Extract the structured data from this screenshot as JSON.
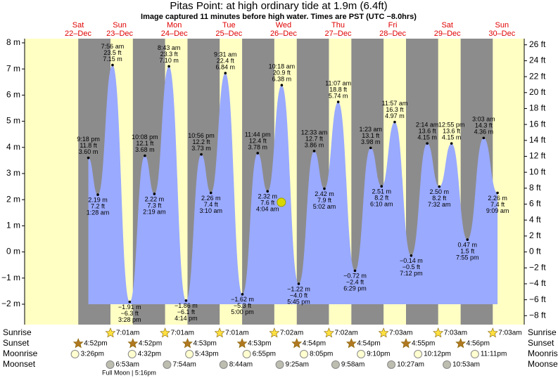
{
  "chart_data": {
    "type": "tide",
    "title": "Pitas Point: at high  ordinary tide at 1.9m (6.4ft)",
    "subtitle": "Image captured 11 minutes before high water. Times are PST (UTC −8.0hrs)",
    "current": {
      "m": 1.9,
      "minutes_before_high": 11
    },
    "ylim": [
      -2.78,
      8.16
    ],
    "yticks": [
      {
        "value": -2,
        "label": "−2 m"
      },
      {
        "value": -1,
        "label": "−1 m"
      },
      {
        "value": 0,
        "label": "0 m"
      },
      {
        "value": 1,
        "label": "1 m"
      },
      {
        "value": 2,
        "label": "2 m"
      },
      {
        "value": 3,
        "label": "3 m"
      },
      {
        "value": 4,
        "label": "4 m"
      },
      {
        "value": 5,
        "label": "5 m"
      },
      {
        "value": 6,
        "label": "6 m"
      },
      {
        "value": 7,
        "label": "7 m"
      },
      {
        "value": 8,
        "label": "8 m"
      }
    ],
    "y2lim": [
      -9.12,
      26.77
    ],
    "y2ticks": [
      {
        "value": -8,
        "label": "−8 ft"
      },
      {
        "value": -6,
        "label": "−6 ft"
      },
      {
        "value": -4,
        "label": "−4 ft"
      },
      {
        "value": -2,
        "label": "−2 ft"
      },
      {
        "value": 0,
        "label": "0 ft"
      },
      {
        "value": 2,
        "label": "2 ft"
      },
      {
        "value": 4,
        "label": "4 ft"
      },
      {
        "value": 6,
        "label": "6 ft"
      },
      {
        "value": 8,
        "label": "8 ft"
      },
      {
        "value": 10,
        "label": "10 ft"
      },
      {
        "value": 12,
        "label": "12 ft"
      },
      {
        "value": 14,
        "label": "14 ft"
      },
      {
        "value": 16,
        "label": "16 ft"
      },
      {
        "value": 18,
        "label": "18 ft"
      },
      {
        "value": 20,
        "label": "20 ft"
      },
      {
        "value": 22,
        "label": "22 ft"
      },
      {
        "value": 24,
        "label": "24 ft"
      },
      {
        "value": 26,
        "label": "26 ft"
      }
    ],
    "row_labels": {
      "sunrise": "Sunrise",
      "sunset": "Sunset",
      "moonrise": "Moonrise",
      "moonset": "Moonset"
    },
    "full_moon": "Full Moon | 5:16pm",
    "days": [
      {
        "name": "Sat",
        "date": "22–Dec",
        "sunset": "4:52pm",
        "moonrise": "3:26pm",
        "tides": [
          {
            "time": "9:18 pm",
            "ft": "11.8 ft",
            "m": 3.6,
            "m_label": "3.60 m"
          }
        ]
      },
      {
        "name": "Sun",
        "date": "23–Dec",
        "sunrise": "7:01am",
        "sunset": "4:52pm",
        "moonrise": "4:32pm",
        "moonset": "6:53am",
        "tides": [
          {
            "time": "1:28 am",
            "ft": "7.2 ft",
            "m": 2.19,
            "m_label": "2.19 m"
          },
          {
            "time": "7:56 am",
            "ft": "23.5 ft",
            "m": 7.15,
            "m_label": "7.15 m"
          },
          {
            "time": "3:28 pm",
            "ft": "−6.3 ft",
            "m": -1.91,
            "m_label": "−1.91 m"
          },
          {
            "time": "10:08 pm",
            "ft": "12.1 ft",
            "m": 3.68,
            "m_label": "3.68 m"
          }
        ]
      },
      {
        "name": "Mon",
        "date": "24–Dec",
        "sunrise": "7:01am",
        "sunset": "4:53pm",
        "moonrise": "5:43pm",
        "moonset": "7:54am",
        "tides": [
          {
            "time": "2:19 am",
            "ft": "7.3 ft",
            "m": 2.22,
            "m_label": "2.22 m"
          },
          {
            "time": "8:43 am",
            "ft": "23.3 ft",
            "m": 7.1,
            "m_label": "7.10 m"
          },
          {
            "time": "4:14 pm",
            "ft": "−6.1 ft",
            "m": -1.86,
            "m_label": "−1.86 m"
          },
          {
            "time": "10:56 pm",
            "ft": "12.2 ft",
            "m": 3.73,
            "m_label": "3.73 m"
          }
        ]
      },
      {
        "name": "Tue",
        "date": "25–Dec",
        "sunrise": "7:01am",
        "sunset": "4:53pm",
        "moonrise": "6:55pm",
        "moonset": "8:44am",
        "tides": [
          {
            "time": "3:10 am",
            "ft": "7.4 ft",
            "m": 2.26,
            "m_label": "2.26 m"
          },
          {
            "time": "9:31 am",
            "ft": "22.4 ft",
            "m": 6.84,
            "m_label": "6.84 m"
          },
          {
            "time": "5:00 pm",
            "ft": "−5.3 ft",
            "m": -1.62,
            "m_label": "−1.62 m"
          },
          {
            "time": "11:44 pm",
            "ft": "12.4 ft",
            "m": 3.78,
            "m_label": "3.78 m"
          }
        ]
      },
      {
        "name": "Wed",
        "date": "26–Dec",
        "sunrise": "7:02am",
        "sunset": "4:54pm",
        "moonrise": "8:05pm",
        "moonset": "9:25am",
        "tides": [
          {
            "time": "4:04 am",
            "ft": "7.6 ft",
            "m": 2.32,
            "m_label": "2.32 m"
          },
          {
            "time": "10:18 am",
            "ft": "20.9 ft",
            "m": 6.38,
            "m_label": "6.38 m"
          },
          {
            "time": "5:45 pm",
            "ft": "−4.0 ft",
            "m": -1.22,
            "m_label": "−1.22 m"
          }
        ]
      },
      {
        "name": "Thu",
        "date": "27–Dec",
        "sunrise": "7:02am",
        "sunset": "4:54pm",
        "moonrise": "9:10pm",
        "moonset": "9:58am",
        "tides": [
          {
            "time": "12:33 am",
            "ft": "12.7 ft",
            "m": 3.86,
            "m_label": "3.86 m"
          },
          {
            "time": "5:02 am",
            "ft": "7.9 ft",
            "m": 2.42,
            "m_label": "2.42 m"
          },
          {
            "time": "11:07 am",
            "ft": "18.8 ft",
            "m": 5.74,
            "m_label": "5.74 m"
          },
          {
            "time": "6:29 pm",
            "ft": "−2.4 ft",
            "m": -0.72,
            "m_label": "−0.72 m"
          }
        ]
      },
      {
        "name": "Fri",
        "date": "28–Dec",
        "sunrise": "7:03am",
        "sunset": "4:55pm",
        "moonrise": "10:12pm",
        "moonset": "10:27am",
        "tides": [
          {
            "time": "1:23 am",
            "ft": "13.1 ft",
            "m": 3.98,
            "m_label": "3.98 m"
          },
          {
            "time": "6:10 am",
            "ft": "8.2 ft",
            "m": 2.51,
            "m_label": "2.51 m"
          },
          {
            "time": "11:57 am",
            "ft": "16.3 ft",
            "m": 4.97,
            "m_label": "4.97 m"
          },
          {
            "time": "7:12 pm",
            "ft": "−0.5 ft",
            "m": -0.14,
            "m_label": "−0.14 m"
          }
        ]
      },
      {
        "name": "Sat",
        "date": "29–Dec",
        "sunrise": "7:03am",
        "sunset": "4:56pm",
        "moonrise": "11:11pm",
        "moonset": "10:53am",
        "tides": [
          {
            "time": "2:14 am",
            "ft": "13.6 ft",
            "m": 4.15,
            "m_label": "4.15 m"
          },
          {
            "time": "7:32 am",
            "ft": "8.2 ft",
            "m": 2.5,
            "m_label": "2.50 m"
          },
          {
            "time": "12:55 pm",
            "ft": "13.6 ft",
            "m": 4.15,
            "m_label": "4.15 m"
          },
          {
            "time": "7:55 pm",
            "ft": "1.5 ft",
            "m": 0.47,
            "m_label": "0.47 m"
          }
        ]
      },
      {
        "name": "Sun",
        "date": "30–Dec",
        "sunrise": "7:03am",
        "tides": [
          {
            "time": "3:03 am",
            "ft": "14.3 ft",
            "m": 4.36,
            "m_label": "4.36 m"
          },
          {
            "time": "9:09 am",
            "ft": "7.4 ft",
            "m": 2.26,
            "m_label": "2.26 m"
          }
        ]
      }
    ]
  }
}
